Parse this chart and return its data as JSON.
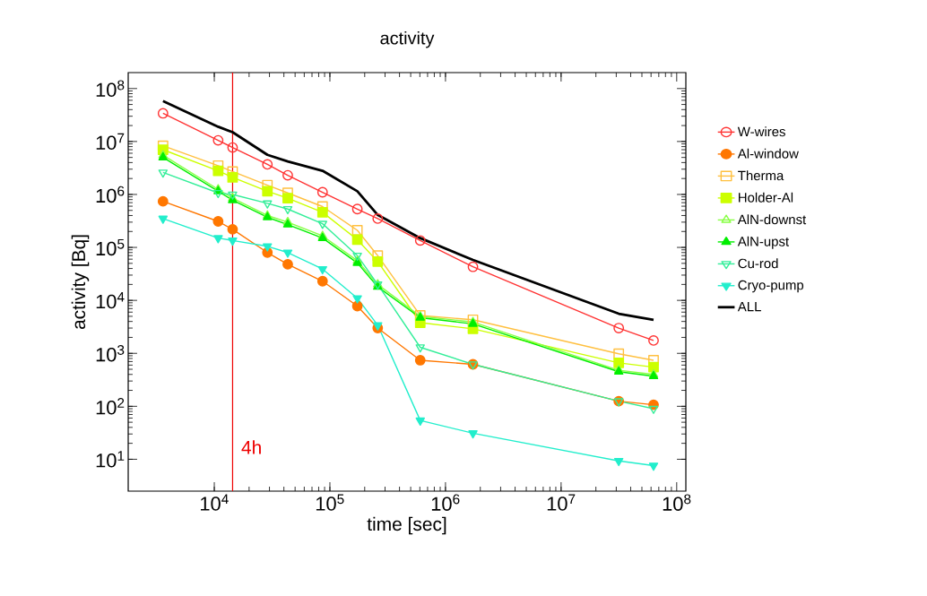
{
  "chart_data": {
    "type": "line",
    "title": "activity",
    "xlabel": "time [sec]",
    "ylabel": "activity [Bq]",
    "log": "xy",
    "grid": false,
    "legend": "right",
    "x": [
      3600,
      10800,
      14400,
      28800,
      43200,
      86400,
      172800,
      259200,
      604800,
      1728000,
      31536000,
      63072000
    ],
    "xlim": [
      1800,
      120000000
    ],
    "ylim": [
      2.5,
      200000000
    ],
    "xticks": [
      {
        "value": 10000,
        "label": "10$^{4}$"
      },
      {
        "value": 100000,
        "label": "10$^{5}$"
      },
      {
        "value": 1000000,
        "label": "10$^{6}$"
      },
      {
        "value": 10000000,
        "label": "10$^{7}$"
      },
      {
        "value": 100000000,
        "label": "10$^{8}$"
      }
    ],
    "yticks": [
      {
        "value": 10,
        "label": "10$^{1}$"
      },
      {
        "value": 100,
        "label": "10$^{2}$"
      },
      {
        "value": 1000,
        "label": "10$^{3}$"
      },
      {
        "value": 10000,
        "label": "10$^{4}$"
      },
      {
        "value": 100000,
        "label": "10$^{5}$"
      },
      {
        "value": 1000000,
        "label": "10$^{6}$"
      },
      {
        "value": 10000000,
        "label": "10$^{7}$"
      },
      {
        "value": 100000000,
        "label": "10$^{8}$"
      }
    ],
    "ref_lines": [
      {
        "axis": "x",
        "value": 14400,
        "label": "4h",
        "color": "#ee0000"
      }
    ],
    "series": [
      {
        "name": "W-wires",
        "color": "#ff3333",
        "marker": "circle-open",
        "values": [
          34000000,
          10500000,
          7700000,
          3700000,
          2300000,
          1100000,
          530000,
          350000,
          135000,
          43000,
          3000,
          1750
        ]
      },
      {
        "name": "Al-window",
        "color": "#ff7700",
        "marker": "circle",
        "values": [
          740000,
          310000,
          220000,
          80000,
          48000,
          23000,
          7800,
          3000,
          740,
          620,
          125,
          107
        ]
      },
      {
        "name": "Therma",
        "color": "#ffc040",
        "marker": "square-open",
        "values": [
          8300000,
          3500000,
          2700000,
          1500000,
          1070000,
          590000,
          210000,
          70000,
          5200,
          4300,
          980,
          740
        ]
      },
      {
        "name": "Holder-Al",
        "color": "#ccff00",
        "marker": "square",
        "values": [
          7000000,
          2800000,
          2100000,
          1150000,
          850000,
          460000,
          140000,
          54000,
          3800,
          2900,
          660,
          550
        ]
      },
      {
        "name": "AlN-downst",
        "color": "#88ff44",
        "marker": "triangle-open",
        "values": [
          5500000,
          1250000,
          850000,
          400000,
          300000,
          165000,
          56000,
          20000,
          5000,
          3900,
          480,
          400
        ]
      },
      {
        "name": "AlN-upst",
        "color": "#00ee00",
        "marker": "triangle",
        "values": [
          5000000,
          1150000,
          780000,
          370000,
          270000,
          150000,
          51000,
          18000,
          4700,
          3600,
          450,
          370
        ]
      },
      {
        "name": "Cu-rod",
        "color": "#33ee99",
        "marker": "triangle-down-open",
        "values": [
          2600000,
          1070000,
          1000000,
          680000,
          530000,
          280000,
          70000,
          20000,
          1300,
          620,
          125,
          90
        ]
      },
      {
        "name": "Cryo-pump",
        "color": "#22eecc",
        "marker": "triangle-down",
        "values": [
          350000,
          150000,
          135000,
          105000,
          80000,
          39000,
          11000,
          3400,
          54,
          31,
          9.3,
          7.6
        ]
      },
      {
        "name": "ALL",
        "color": "#000000",
        "marker": "none",
        "values": [
          58000000,
          19000000,
          15000000,
          5600000,
          4200000,
          2800000,
          1150000,
          410000,
          150000,
          58000,
          5600,
          4300
        ]
      }
    ]
  }
}
